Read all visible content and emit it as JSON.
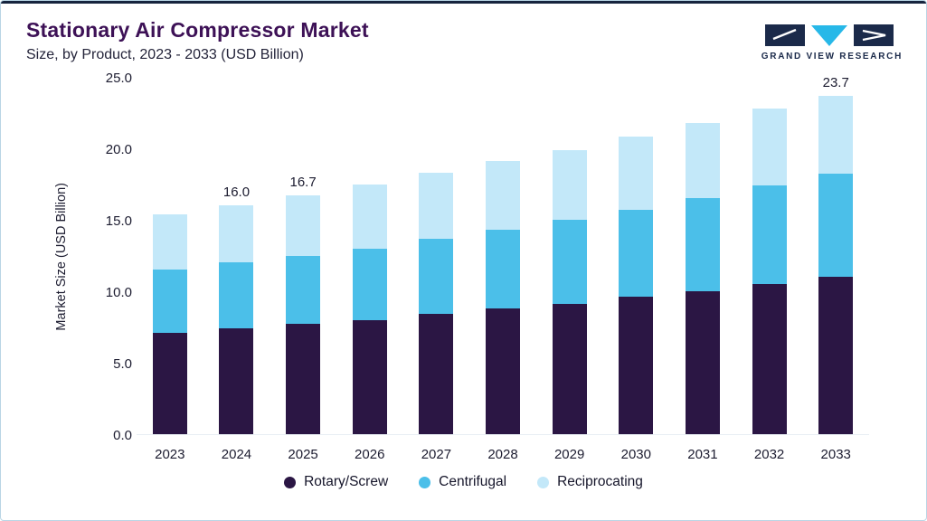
{
  "header": {
    "title": "Stationary Air Compressor Market",
    "subtitle": "Size, by Product, 2023 - 2033 (USD Billion)"
  },
  "logo": {
    "text": "GRAND VIEW RESEARCH",
    "navy": "#1b2a4a",
    "cyan": "#27b8e8"
  },
  "chart_data": {
    "type": "bar",
    "stacked": true,
    "title": "Stationary Air Compressor Market Size, by Product, 2023 - 2033 (USD Billion)",
    "xlabel": "",
    "ylabel": "Market Size (USD Billion)",
    "ylim": [
      0,
      25
    ],
    "yticks": [
      0.0,
      5.0,
      10.0,
      15.0,
      20.0,
      25.0
    ],
    "grid": false,
    "legend_position": "bottom",
    "categories": [
      "2023",
      "2024",
      "2025",
      "2026",
      "2027",
      "2028",
      "2029",
      "2030",
      "2031",
      "2032",
      "2033"
    ],
    "series": [
      {
        "name": "Rotary/Screw",
        "color": "#2b1644",
        "values": [
          7.1,
          7.4,
          7.7,
          8.0,
          8.4,
          8.8,
          9.1,
          9.6,
          10.0,
          10.5,
          11.0
        ]
      },
      {
        "name": "Centrifugal",
        "color": "#4bbfe9",
        "values": [
          4.4,
          4.6,
          4.8,
          5.0,
          5.3,
          5.5,
          5.9,
          6.1,
          6.5,
          6.9,
          7.2
        ]
      },
      {
        "name": "Reciprocating",
        "color": "#c3e8f9",
        "values": [
          3.9,
          4.0,
          4.2,
          4.5,
          4.6,
          4.8,
          4.9,
          5.1,
          5.3,
          5.4,
          5.5
        ]
      }
    ],
    "totals": [
      15.4,
      16.0,
      16.7,
      17.5,
      18.3,
      19.1,
      19.9,
      20.8,
      21.8,
      22.8,
      23.7
    ],
    "totals_labels": [
      {
        "category": "2024",
        "label": "16.0"
      },
      {
        "category": "2025",
        "label": "16.7"
      },
      {
        "category": "2033",
        "label": "23.7"
      }
    ]
  }
}
